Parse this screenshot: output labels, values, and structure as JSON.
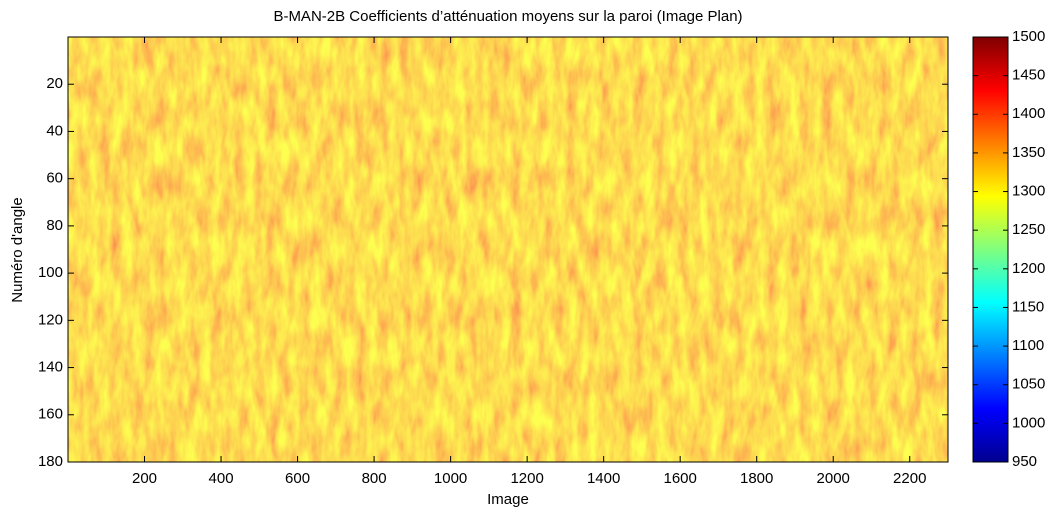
{
  "chart_data": {
    "type": "heatmap",
    "title": "B-MAN-2B  Coefficients d’atténuation moyens sur la paroi (Image Plan)",
    "xlabel": "Image",
    "ylabel": "Numéro d'angle",
    "xlim": [
      0,
      2300
    ],
    "xticks": [
      200,
      400,
      600,
      800,
      1000,
      1200,
      1400,
      1600,
      1800,
      2000,
      2200
    ],
    "ylim": [
      0,
      180
    ],
    "yticks": [
      20,
      40,
      60,
      80,
      100,
      120,
      140,
      160,
      180
    ],
    "y_reversed": true,
    "colorbar": {
      "colormap": "jet",
      "lim": [
        950,
        1500
      ],
      "ticks": [
        950,
        1000,
        1050,
        1100,
        1150,
        1200,
        1250,
        1300,
        1350,
        1400,
        1450,
        1500
      ]
    }
  }
}
